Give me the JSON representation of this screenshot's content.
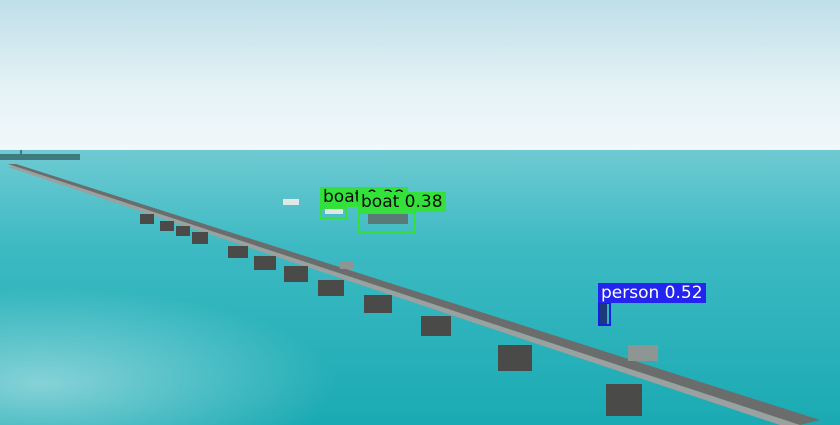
{
  "image": {
    "description_colors": {
      "sky_top": "#cfe6ee",
      "sky_horizon": "#eef6f8",
      "sea_far": "#5fc7d0",
      "sea_near": "#1fb0b8",
      "bridge": "#5b5f5e"
    }
  },
  "detections": [
    {
      "label": "boat 0.38",
      "color": "#34e13a"
    },
    {
      "label": "boat 0.38",
      "color": "#34e13a"
    },
    {
      "label": "person 0.52",
      "color": "#2424f0"
    }
  ]
}
